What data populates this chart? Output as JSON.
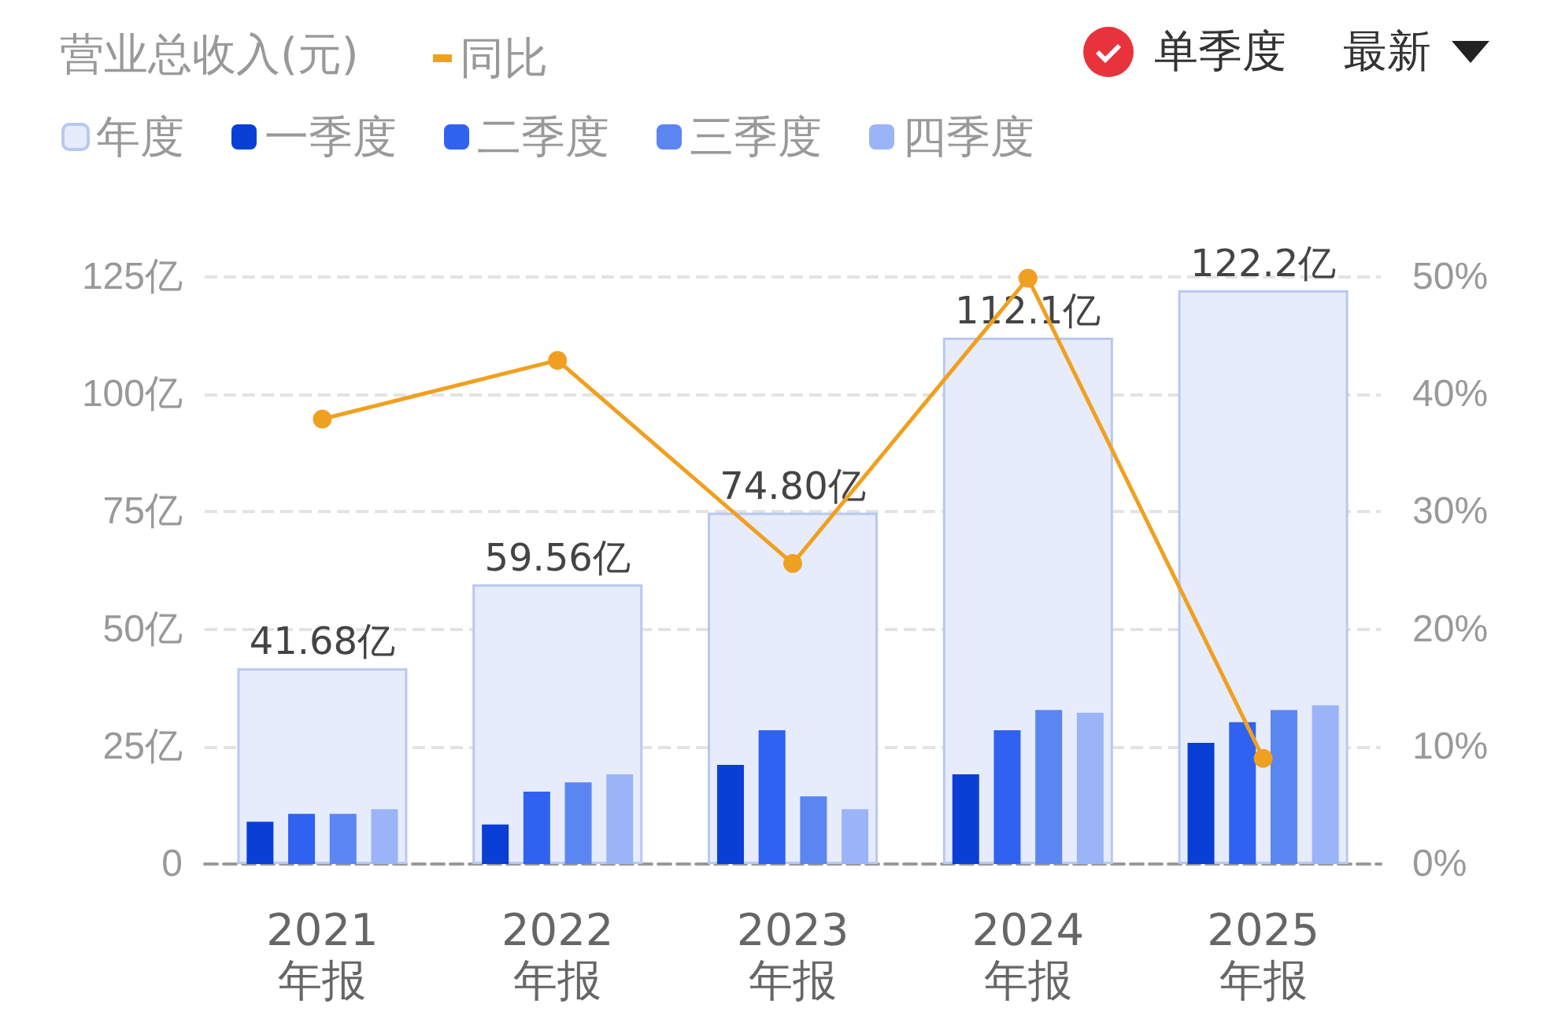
{
  "chart_data": {
    "type": "bar",
    "title": "营业总收入(元)",
    "annotations": [
      "单季度",
      "最新"
    ],
    "categories": [
      "2021\n年报",
      "2022\n年报",
      "2023\n年报",
      "2024\n年报",
      "2025\n年报"
    ],
    "series": [
      {
        "name": "年度",
        "color": "#e6ecfc",
        "values": [
          41.68,
          59.56,
          74.8,
          112.1,
          122.2
        ],
        "value_labels": [
          "41.68亿",
          "59.56亿",
          "74.80亿",
          "112.1亿",
          "122.2亿"
        ]
      },
      {
        "name": "一季度",
        "color": "#0a3fd6",
        "values": [
          9.0,
          8.4,
          21.1,
          19.1,
          25.8
        ]
      },
      {
        "name": "二季度",
        "color": "#2f62f0",
        "values": [
          10.7,
          15.4,
          28.5,
          28.5,
          30.2
        ]
      },
      {
        "name": "三季度",
        "color": "#5b86f2",
        "values": [
          10.7,
          17.4,
          14.4,
          32.8,
          32.8
        ]
      },
      {
        "name": "四季度",
        "color": "#9ab4f7",
        "values": [
          11.7,
          19.1,
          11.7,
          32.2,
          33.8
        ]
      },
      {
        "name": "同比",
        "type": "line",
        "axis": "y2",
        "color": "#f0a020",
        "values": [
          37.9,
          42.9,
          25.6,
          49.9,
          9.0
        ]
      }
    ],
    "ylim": [
      0,
      125
    ],
    "yticks": [
      {
        "value": 0,
        "label": "0"
      },
      {
        "value": 25,
        "label": "25亿"
      },
      {
        "value": 50,
        "label": "50亿"
      },
      {
        "value": 75,
        "label": "75亿"
      },
      {
        "value": 100,
        "label": "100亿"
      },
      {
        "value": 125,
        "label": "125亿"
      }
    ],
    "y2lim": [
      0,
      50
    ],
    "y2ticks": [
      {
        "value": 0,
        "label": "0%"
      },
      {
        "value": 10,
        "label": "10%"
      },
      {
        "value": 20,
        "label": "20%"
      },
      {
        "value": 30,
        "label": "30%"
      },
      {
        "value": 40,
        "label": "40%"
      },
      {
        "value": 50,
        "label": "50%"
      }
    ],
    "grid": "y",
    "legend": "top left",
    "marker": "circle",
    "line_style": "solid"
  }
}
